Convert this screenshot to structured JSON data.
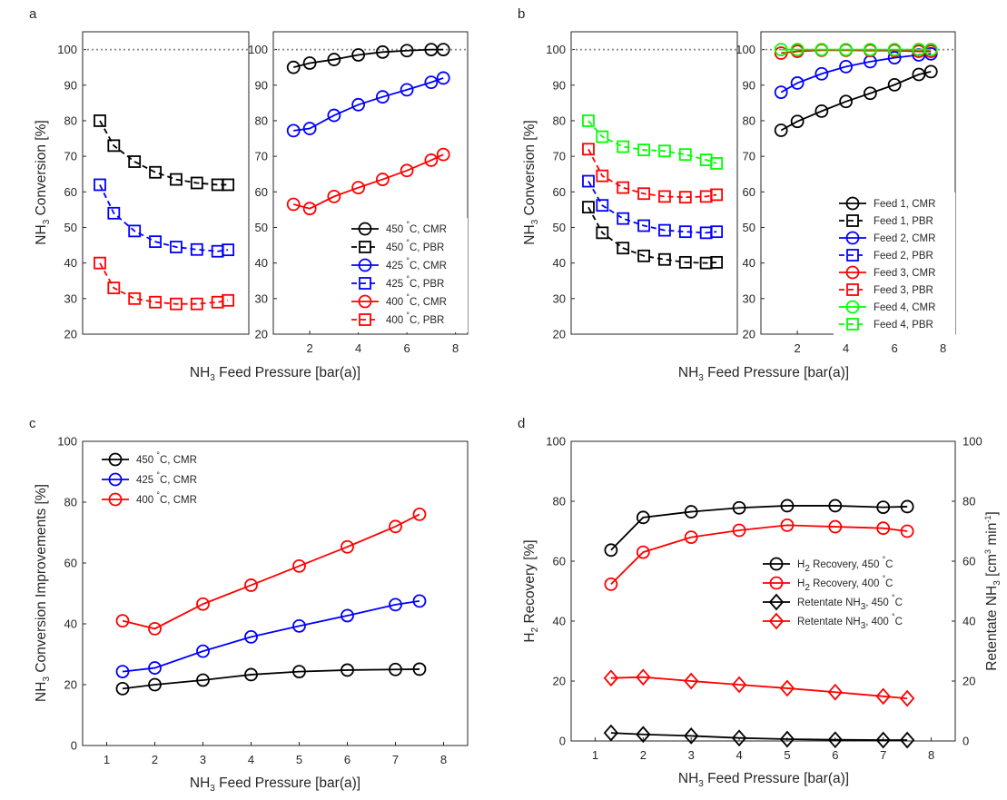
{
  "colors": {
    "black": "#000000",
    "blue": "#0000ff",
    "red": "#ff0000",
    "green": "#00ff00",
    "ref": "#888888"
  },
  "chart_data": [
    {
      "panel": "a",
      "side": "left",
      "type": "line",
      "xlabel": "NH3 Feed Pressure [bar(a)]",
      "ylabel": "NH3 Conversion [%]",
      "xlim": [
        0.5,
        8.5
      ],
      "ylim": [
        20,
        105
      ],
      "xticks": [],
      "yticks": [
        20,
        30,
        40,
        50,
        60,
        70,
        80,
        90,
        100
      ],
      "reference_line": 100,
      "series": [
        {
          "name": "450 °C, PBR",
          "color": "black",
          "marker": "square",
          "dashed": true,
          "x": [
            1.33,
            2,
            3,
            4,
            5,
            6,
            7,
            7.5
          ],
          "y": [
            80,
            73,
            68.5,
            65.5,
            63.5,
            62.5,
            62,
            62
          ]
        },
        {
          "name": "425 °C, PBR",
          "color": "blue",
          "marker": "square",
          "dashed": true,
          "x": [
            1.33,
            2,
            3,
            4,
            5,
            6,
            7,
            7.5
          ],
          "y": [
            62,
            54,
            49,
            46,
            44.5,
            43.8,
            43.3,
            43.7
          ]
        },
        {
          "name": "400 °C, PBR",
          "color": "red",
          "marker": "square",
          "dashed": true,
          "x": [
            1.33,
            2,
            3,
            4,
            5,
            6,
            7,
            7.5
          ],
          "y": [
            40,
            33,
            30,
            29,
            28.5,
            28.5,
            29,
            29.5
          ]
        }
      ]
    },
    {
      "panel": "a",
      "side": "right",
      "type": "line",
      "xlim": [
        0.5,
        8.5
      ],
      "ylim": [
        20,
        105
      ],
      "xticks": [
        2,
        4,
        6,
        8
      ],
      "yticks": [
        20,
        30,
        40,
        50,
        60,
        70,
        80,
        90,
        100
      ],
      "reference_line": 100,
      "legend_position": "bottom-right",
      "series": [
        {
          "name": "450 °C, CMR",
          "legend": [
            "450 ",
            "°",
            "C, CMR"
          ],
          "color": "black",
          "marker": "circle",
          "x": [
            1.33,
            2,
            3,
            4,
            5,
            6,
            7,
            7.5
          ],
          "y": [
            95,
            96.2,
            97.2,
            98.5,
            99.3,
            99.7,
            100,
            100
          ]
        },
        {
          "name": "450 °C, PBR",
          "legend": [
            "450 ",
            "°",
            "C, PBR"
          ],
          "color": "black",
          "marker": "square",
          "dashed": true,
          "legend_only": true,
          "x": [],
          "y": []
        },
        {
          "name": "425 °C, CMR",
          "legend": [
            "425 ",
            "°",
            "C, CMR"
          ],
          "color": "blue",
          "marker": "circle",
          "x": [
            1.33,
            2,
            3,
            4,
            5,
            6,
            7,
            7.5
          ],
          "y": [
            77.2,
            77.8,
            81.5,
            84.5,
            86.7,
            88.7,
            90.8,
            92
          ]
        },
        {
          "name": "425 °C, PBR",
          "legend": [
            "425 ",
            "°",
            "C, PBR"
          ],
          "color": "blue",
          "marker": "square",
          "dashed": true,
          "legend_only": true,
          "x": [],
          "y": []
        },
        {
          "name": "400 °C, CMR",
          "legend": [
            "400 ",
            "°",
            "C, CMR"
          ],
          "color": "red",
          "marker": "circle",
          "x": [
            1.33,
            2,
            3,
            4,
            5,
            6,
            7,
            7.5
          ],
          "y": [
            56.5,
            55.3,
            58.7,
            61.2,
            63.5,
            66,
            68.9,
            70.5
          ]
        },
        {
          "name": "400 °C, PBR",
          "legend": [
            "400 ",
            "°",
            "C, PBR"
          ],
          "color": "red",
          "marker": "square",
          "dashed": true,
          "legend_only": true,
          "x": [],
          "y": []
        }
      ]
    },
    {
      "panel": "b",
      "side": "left",
      "type": "line",
      "xlabel": "NH3 Feed Pressure [bar(a)]",
      "ylabel": "NH3 Conversion [%]",
      "xlim": [
        0.5,
        8.5
      ],
      "ylim": [
        20,
        105
      ],
      "xticks": [],
      "yticks": [
        20,
        30,
        40,
        50,
        60,
        70,
        80,
        90,
        100
      ],
      "reference_line": 100,
      "series": [
        {
          "name": "Feed 4, PBR",
          "color": "green",
          "marker": "square",
          "dashed": true,
          "x": [
            1.33,
            2,
            3,
            4,
            5,
            6,
            7,
            7.5
          ],
          "y": [
            80,
            75.5,
            72.7,
            71.8,
            71.5,
            70.5,
            69,
            68
          ]
        },
        {
          "name": "Feed 3, PBR",
          "color": "red",
          "marker": "square",
          "dashed": true,
          "x": [
            1.33,
            2,
            3,
            4,
            5,
            6,
            7,
            7.5
          ],
          "y": [
            72,
            64.5,
            61.2,
            59.5,
            58.7,
            58.5,
            58.7,
            59.2
          ]
        },
        {
          "name": "Feed 2, PBR",
          "color": "blue",
          "marker": "square",
          "dashed": true,
          "x": [
            1.33,
            2,
            3,
            4,
            5,
            6,
            7,
            7.5
          ],
          "y": [
            63,
            56.2,
            52.5,
            50.5,
            49.2,
            48.8,
            48.5,
            48.8
          ]
        },
        {
          "name": "Feed 1, PBR",
          "color": "black",
          "marker": "square",
          "dashed": true,
          "x": [
            1.33,
            2,
            3,
            4,
            5,
            6,
            7,
            7.5
          ],
          "y": [
            55.7,
            48.5,
            44.2,
            42,
            41,
            40.2,
            40,
            40.2
          ]
        }
      ]
    },
    {
      "panel": "b",
      "side": "right",
      "type": "line",
      "xlim": [
        0.5,
        8.5
      ],
      "ylim": [
        20,
        105
      ],
      "xticks": [
        2,
        4,
        6,
        8
      ],
      "yticks": [
        20,
        30,
        40,
        50,
        60,
        70,
        80,
        90,
        100
      ],
      "reference_line": 100,
      "legend_position": "bottom-right",
      "series": [
        {
          "name": "Feed 1, CMR",
          "legend": [
            "Feed 1, CMR"
          ],
          "color": "black",
          "marker": "circle",
          "x": [
            1.33,
            2,
            3,
            4,
            5,
            6,
            7,
            7.5
          ],
          "y": [
            77.3,
            79.8,
            82.7,
            85.4,
            87.7,
            90.1,
            93,
            93.8
          ]
        },
        {
          "name": "Feed 1, PBR",
          "legend": [
            "Feed 1, PBR"
          ],
          "color": "black",
          "marker": "square",
          "dashed": true,
          "legend_only": true,
          "x": [],
          "y": []
        },
        {
          "name": "Feed 2, CMR",
          "legend": [
            "Feed 2, CMR"
          ],
          "color": "blue",
          "marker": "circle",
          "x": [
            1.33,
            2,
            3,
            4,
            5,
            6,
            7,
            7.5
          ],
          "y": [
            88,
            90.6,
            93.2,
            95.2,
            96.6,
            97.7,
            98.5,
            98.8
          ]
        },
        {
          "name": "Feed 2, PBR",
          "legend": [
            "Feed 2, PBR"
          ],
          "color": "blue",
          "marker": "square",
          "dashed": true,
          "legend_only": true,
          "x": [],
          "y": []
        },
        {
          "name": "Feed 3, CMR",
          "legend": [
            "Feed 3, CMR"
          ],
          "color": "red",
          "marker": "circle",
          "x": [
            1.33,
            2,
            3,
            4,
            5,
            6,
            7,
            7.5
          ],
          "y": [
            99,
            99.5,
            99.8,
            99.8,
            99.7,
            99.7,
            99.5,
            99.5
          ]
        },
        {
          "name": "Feed 3, PBR",
          "legend": [
            "Feed 3, PBR"
          ],
          "color": "red",
          "marker": "square",
          "dashed": true,
          "legend_only": true,
          "x": [],
          "y": []
        },
        {
          "name": "Feed 4, CMR",
          "legend": [
            "Feed 4, CMR"
          ],
          "color": "green",
          "marker": "circle",
          "x": [
            1.33,
            2,
            3,
            4,
            5,
            6,
            7,
            7.5
          ],
          "y": [
            100,
            100,
            100,
            100,
            100,
            100,
            100,
            100
          ]
        },
        {
          "name": "Feed 4, PBR",
          "legend": [
            "Feed 4, PBR"
          ],
          "color": "green",
          "marker": "square",
          "dashed": true,
          "legend_only": true,
          "x": [],
          "y": []
        }
      ]
    },
    {
      "panel": "c",
      "type": "line",
      "xlabel": "NH3 Feed Pressure [bar(a)]",
      "ylabel": "NH3 Conversion Improvements [%]",
      "xlim": [
        0.5,
        8.5
      ],
      "ylim": [
        0,
        100
      ],
      "xticks": [
        1,
        2,
        3,
        4,
        5,
        6,
        7,
        8
      ],
      "yticks": [
        0,
        20,
        40,
        60,
        80,
        100
      ],
      "legend_position": "top-left",
      "series": [
        {
          "name": "450 °C, CMR",
          "legend": [
            "450 ",
            "°",
            "C, CMR"
          ],
          "color": "black",
          "marker": "circle",
          "x": [
            1.33,
            2,
            3,
            4,
            5,
            6,
            7,
            7.5
          ],
          "y": [
            18.7,
            20,
            21.5,
            23.3,
            24.3,
            24.8,
            25,
            25.1
          ]
        },
        {
          "name": "425 °C, CMR",
          "legend": [
            "425 ",
            "°",
            "C, CMR"
          ],
          "color": "blue",
          "marker": "circle",
          "x": [
            1.33,
            2,
            3,
            4,
            5,
            6,
            7,
            7.5
          ],
          "y": [
            24.3,
            25.5,
            31,
            35.7,
            39.3,
            42.7,
            46.3,
            47.5
          ]
        },
        {
          "name": "400 °C, CMR",
          "legend": [
            "400 ",
            "°",
            "C, CMR"
          ],
          "color": "red",
          "marker": "circle",
          "x": [
            1.33,
            2,
            3,
            4,
            5,
            6,
            7,
            7.5
          ],
          "y": [
            41,
            38.4,
            46.5,
            52.7,
            59,
            65.3,
            72,
            76
          ]
        }
      ]
    },
    {
      "panel": "d",
      "type": "line",
      "xlabel": "NH3 Feed Pressure [bar(a)]",
      "ylabel": "H2 Recovery [%]",
      "y2label": "Retentate NH3 [cm3 min-1]",
      "xlim": [
        0.5,
        8.5
      ],
      "ylim": [
        0,
        100
      ],
      "y2lim": [
        0,
        100
      ],
      "xticks": [
        1,
        2,
        3,
        4,
        5,
        6,
        7,
        8
      ],
      "yticks": [
        0,
        20,
        40,
        60,
        80,
        100
      ],
      "legend_position": "middle-right",
      "series": [
        {
          "name": "H2 Recovery, 450 °C",
          "legend": [
            "H",
            "2",
            " Recovery, 450 ",
            "°",
            "C"
          ],
          "color": "black",
          "marker": "circle",
          "x": [
            1.33,
            2,
            3,
            4,
            5,
            6,
            7,
            7.5
          ],
          "y": [
            63.7,
            74.6,
            76.5,
            77.8,
            78.5,
            78.5,
            78,
            78.2
          ]
        },
        {
          "name": "H2 Recovery, 400 °C",
          "legend": [
            "H",
            "2",
            " Recovery, 400 ",
            "°",
            "C"
          ],
          "color": "red",
          "marker": "circle",
          "x": [
            1.33,
            2,
            3,
            4,
            5,
            6,
            7,
            7.5
          ],
          "y": [
            52.3,
            63,
            68,
            70.3,
            72,
            71.5,
            71,
            70
          ]
        },
        {
          "name": "Retentate NH3, 450 °C",
          "legend": [
            "Retentate NH",
            "3",
            ", 450 ",
            "°",
            "C"
          ],
          "color": "black",
          "marker": "diamond",
          "x": [
            1.33,
            2,
            3,
            4,
            5,
            6,
            7,
            7.5
          ],
          "y": [
            2.7,
            2.2,
            1.7,
            1,
            0.6,
            0.4,
            0.3,
            0.3
          ]
        },
        {
          "name": "Retentate NH3, 400 °C",
          "legend": [
            "Retentate NH",
            "3",
            ", 400 ",
            "°",
            "C"
          ],
          "color": "red",
          "marker": "diamond",
          "x": [
            1.33,
            2,
            3,
            4,
            5,
            6,
            7,
            7.5
          ],
          "y": [
            21,
            21.3,
            20,
            18.8,
            17.6,
            16.3,
            14.9,
            14.2
          ]
        }
      ]
    }
  ]
}
